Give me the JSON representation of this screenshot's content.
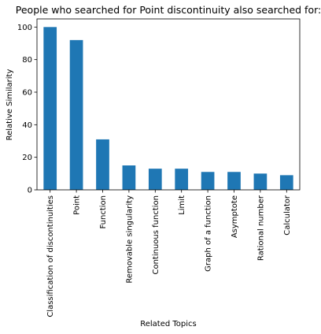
{
  "chart_data": {
    "type": "bar",
    "title": "People who searched for Point discontinuity also searched for:",
    "xlabel": "Related Topics",
    "ylabel": "Relative Similarity",
    "categories": [
      "Classification of discontinuities",
      "Point",
      "Function",
      "Removable singularity",
      "Continuous function",
      "Limit",
      "Graph of a function",
      "Asymptote",
      "Rational number",
      "Calculator"
    ],
    "values": [
      100,
      92,
      31,
      15,
      13,
      13,
      11,
      11,
      10,
      9
    ],
    "ylim": [
      0,
      105
    ],
    "yticks": [
      0,
      20,
      40,
      60,
      80,
      100
    ],
    "bar_color": "#1f77b4",
    "grid": false,
    "legend": "none"
  }
}
